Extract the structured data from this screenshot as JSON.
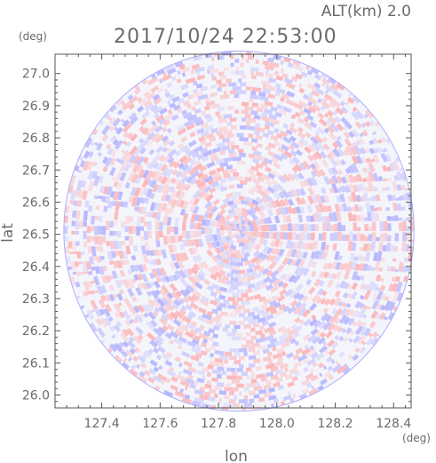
{
  "header": {
    "altitude": "ALT(km)  2.0",
    "timestamp": "2017/10/24 22:53:00"
  },
  "chart_data": {
    "type": "heatmap",
    "title": "2017/10/24 22:53:00",
    "subtitle": "ALT(km)  2.0",
    "xlabel": "lon",
    "ylabel": "lat",
    "x_unit": "(deg)",
    "y_unit": "(deg)",
    "xlim": [
      127.24,
      128.46
    ],
    "ylim": [
      25.96,
      27.06
    ],
    "x_ticks": [
      127.4,
      127.6,
      127.8,
      128.0,
      128.2,
      128.4
    ],
    "x_tick_labels": [
      "127.4",
      "127.6",
      "127.8",
      "128.0",
      "128.2",
      "128.4"
    ],
    "y_ticks": [
      27.0,
      26.9,
      26.8,
      26.7,
      26.6,
      26.5,
      26.4,
      26.3,
      26.2,
      26.1,
      26.0
    ],
    "y_tick_labels": [
      "27.0",
      "26.9",
      "26.8",
      "26.7",
      "26.6",
      "26.5",
      "26.4",
      "26.3",
      "26.2",
      "26.1",
      "26.0"
    ],
    "center": {
      "lon": 127.87,
      "lat": 26.51
    },
    "radius_deg": {
      "lon": 0.6,
      "lat": 0.56
    },
    "colors": {
      "positive": "#ff9a9a",
      "negative": "#9a9aff",
      "background": "#f4f4fb",
      "frame": "#555555"
    },
    "grid": false
  }
}
